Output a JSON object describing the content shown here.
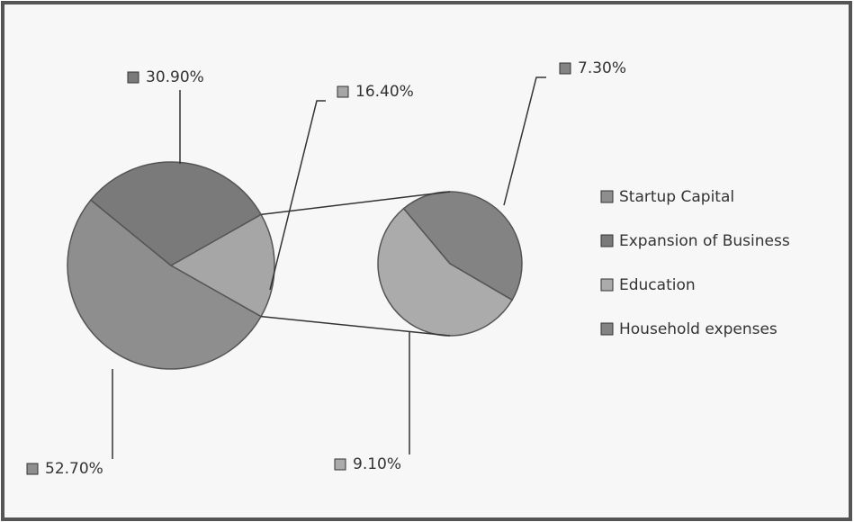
{
  "chart_data": {
    "type": "pie-of-pie",
    "categories": [
      "Startup Capital",
      "Expansion of Business",
      "Education",
      "Household expenses"
    ],
    "values": [
      52.7,
      30.9,
      9.1,
      7.3
    ],
    "value_labels": [
      "52.70%",
      "30.90%",
      "9.10%",
      "7.30%"
    ],
    "colors": [
      "#8e8e8e",
      "#7a7a7a",
      "#ababab",
      "#838383"
    ],
    "other_value": 16.4,
    "other_label": "16.40%",
    "other_color": "#a6a6a6",
    "legend": "right"
  }
}
